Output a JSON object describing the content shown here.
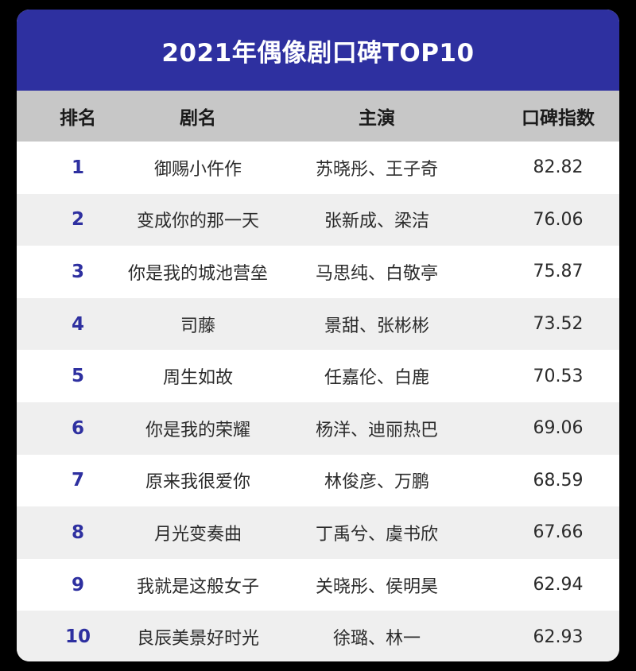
{
  "chart_data": {
    "type": "table",
    "title": "2021年偶像剧口碑TOP10",
    "columns": [
      "排名",
      "剧名",
      "主演",
      "口碑指数"
    ],
    "rows": [
      {
        "rank": "1",
        "title": "御赐小仵作",
        "cast": "苏晓彤、王子奇",
        "score": "82.82"
      },
      {
        "rank": "2",
        "title": "变成你的那一天",
        "cast": "张新成、梁洁",
        "score": "76.06"
      },
      {
        "rank": "3",
        "title": "你是我的城池营垒",
        "cast": "马思纯、白敬亭",
        "score": "75.87"
      },
      {
        "rank": "4",
        "title": "司藤",
        "cast": "景甜、张彬彬",
        "score": "73.52"
      },
      {
        "rank": "5",
        "title": "周生如故",
        "cast": "任嘉伦、白鹿",
        "score": "70.53"
      },
      {
        "rank": "6",
        "title": "你是我的荣耀",
        "cast": "杨洋、迪丽热巴",
        "score": "69.06"
      },
      {
        "rank": "7",
        "title": "原来我很爱你",
        "cast": "林俊彦、万鹏",
        "score": "68.59"
      },
      {
        "rank": "8",
        "title": "月光变奏曲",
        "cast": "丁禹兮、虞书欣",
        "score": "67.66"
      },
      {
        "rank": "9",
        "title": "我就是这般女子",
        "cast": "关晓彤、侯明昊",
        "score": "62.94"
      },
      {
        "rank": "10",
        "title": "良辰美景好时光",
        "cast": "徐璐、林一",
        "score": "62.93"
      }
    ]
  },
  "colors": {
    "title_bar": "#2e30a0",
    "rank_text": "#2e30a0",
    "header_bg": "#c7c7c7",
    "stripe_bg": "#efefef"
  }
}
